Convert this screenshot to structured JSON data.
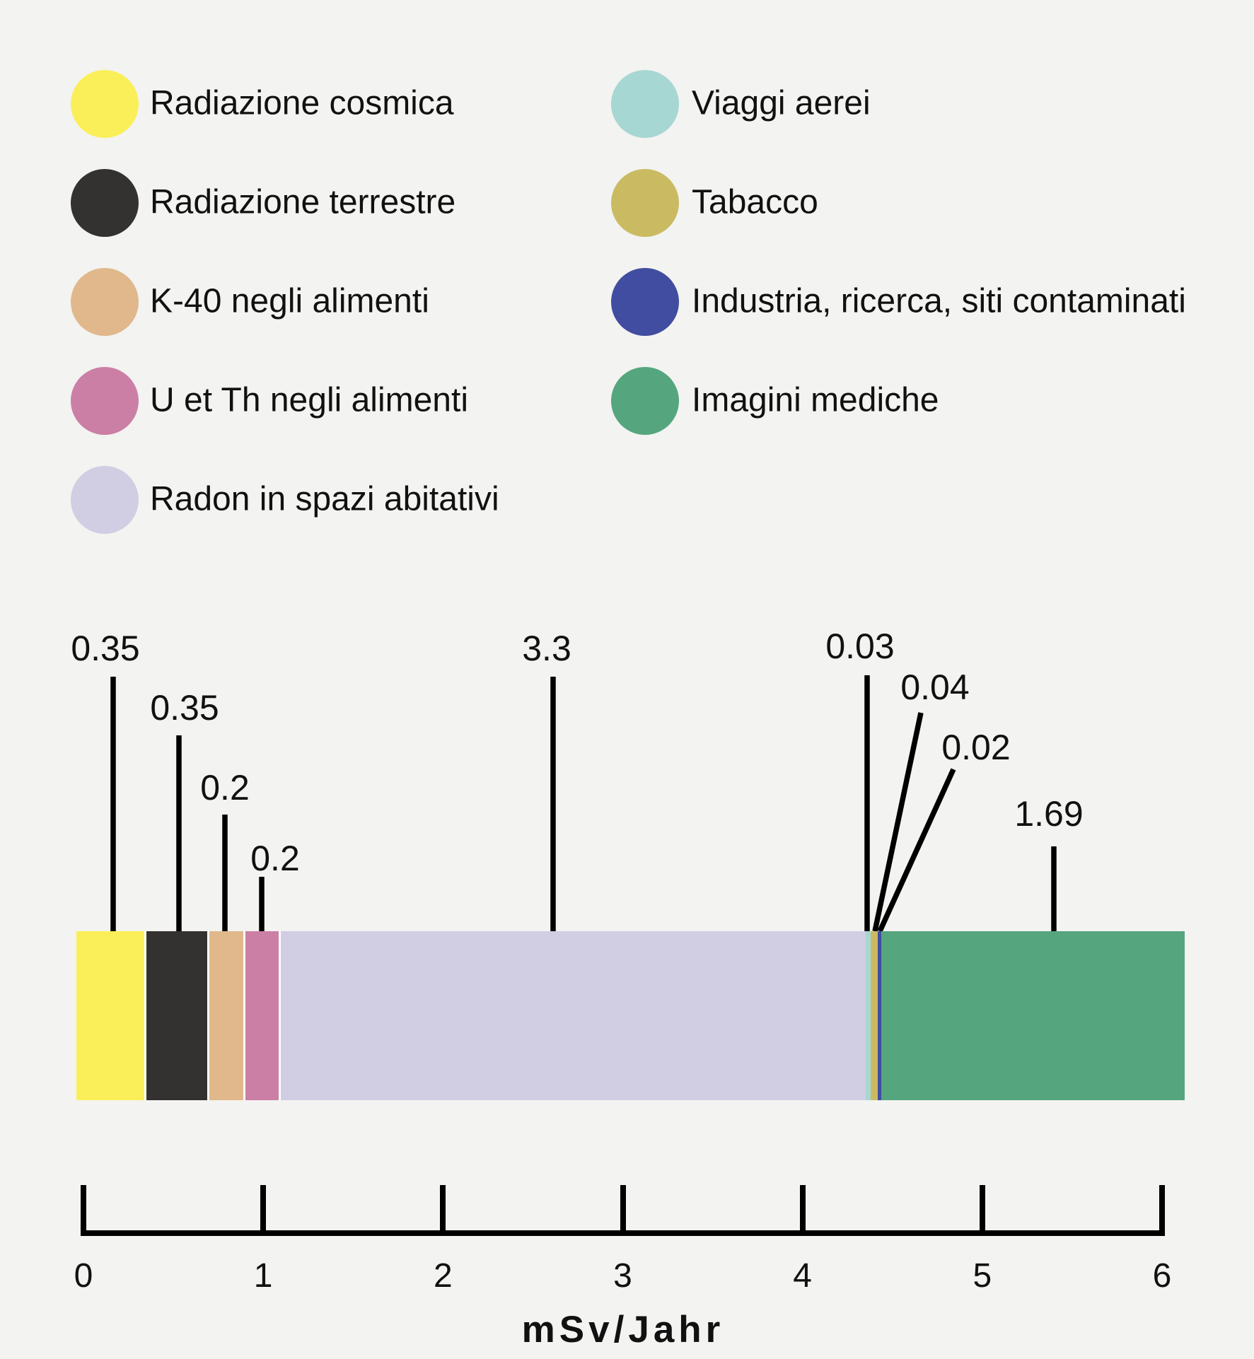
{
  "chart_data": {
    "type": "bar",
    "orientation": "horizontal-stacked",
    "unit_label": "mSv/Jahr",
    "axis": {
      "min": 0,
      "max": 6,
      "ticks": [
        "0",
        "1",
        "2",
        "3",
        "4",
        "5",
        "6"
      ]
    },
    "segments": [
      {
        "name": "Radiazione cosmica",
        "value": 0.35,
        "label": "0.35",
        "color": "#faef58"
      },
      {
        "name": "Radiazione terrestre",
        "value": 0.35,
        "label": "0.35",
        "color": "#333230"
      },
      {
        "name": "K-40 negli alimenti",
        "value": 0.2,
        "label": "0.2",
        "color": "#e0b88c"
      },
      {
        "name": "U et Th negli alimenti",
        "value": 0.2,
        "label": "0.2",
        "color": "#cb7fa4"
      },
      {
        "name": "Radon in spazi abitativi",
        "value": 3.3,
        "label": "3.3",
        "color": "#d1cde3"
      },
      {
        "name": "Viaggi aerei",
        "value": 0.03,
        "label": "0.03",
        "color": "#a6d7d3"
      },
      {
        "name": "Tabacco",
        "value": 0.04,
        "label": "0.04",
        "color": "#cabb63"
      },
      {
        "name": "Industria, ricerca, siti contaminati",
        "value": 0.02,
        "label": "0.02",
        "color": "#414da0"
      },
      {
        "name": "Imagini mediche",
        "value": 1.69,
        "label": "1.69",
        "color": "#55a67e"
      }
    ],
    "legend_columns": [
      [
        0,
        1,
        2,
        3,
        4
      ],
      [
        5,
        6,
        7,
        8
      ]
    ],
    "legend_position": "top",
    "grid": false
  }
}
